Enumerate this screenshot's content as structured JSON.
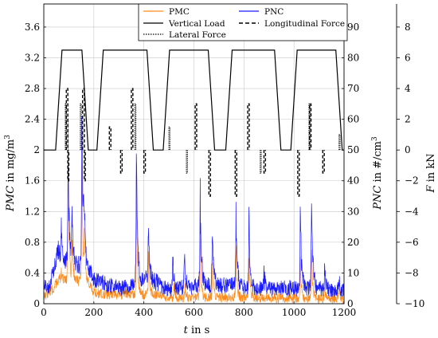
{
  "chart_data": {
    "type": "line",
    "x_range": [
      0,
      1200
    ],
    "x_ticks": [
      "0",
      "200",
      "400",
      "600",
      "800",
      "1000",
      "1200"
    ],
    "xlabel_var": "t",
    "xlabel_rest": " in s",
    "axes": {
      "pmc": {
        "range": [
          0,
          3.9
        ],
        "ticks": [
          "0",
          "0.4",
          "0.8",
          "1.2",
          "1.6",
          "2",
          "2.4",
          "2.8",
          "3.2",
          "3.6"
        ],
        "label_var": "PMC",
        "label_rest": " in mg/m",
        "label_sup": "3"
      },
      "pnc": {
        "range": [
          0,
          97.5
        ],
        "ticks": [
          "0",
          "10",
          "20",
          "30",
          "40",
          "50",
          "60",
          "70",
          "80",
          "90"
        ],
        "label_var": "PNC",
        "label_rest": " in #/cm",
        "label_sup": "3"
      },
      "force": {
        "range": [
          -10,
          9.5
        ],
        "ticks": [
          "−10",
          "−8",
          "−6",
          "−4",
          "−2",
          "0",
          "2",
          "4",
          "6",
          "8"
        ],
        "label_var": "F",
        "label_rest": " in kN"
      }
    },
    "grid": true,
    "legend_position": "top-center",
    "legend": {
      "pmc": "PMC",
      "pnc": "PNC",
      "vertical": "Vertical Load",
      "longitudinal": "Longitudinal Force",
      "lateral": "Lateral Force"
    },
    "colors": {
      "pmc": "#ff8c1a",
      "pnc": "#1a1aff",
      "force": "#000000"
    },
    "vertical_load_kN": {
      "base": 0,
      "level": 6.5,
      "on_intervals": [
        [
          60,
          165
        ],
        [
          225,
          425
        ],
        [
          490,
          670
        ],
        [
          740,
          935
        ],
        [
          1000,
          1180
        ]
      ]
    },
    "longitudinal_force_kN": [
      [
        90,
        96,
        4
      ],
      [
        96,
        100,
        -2
      ],
      [
        155,
        162,
        4
      ],
      [
        162,
        166,
        -2
      ],
      [
        262,
        268,
        1.5
      ],
      [
        307,
        313,
        -1.5
      ],
      [
        350,
        356,
        4
      ],
      [
        400,
        406,
        -1.5
      ],
      [
        605,
        611,
        3
      ],
      [
        660,
        666,
        -3
      ],
      [
        765,
        771,
        -3
      ],
      [
        815,
        821,
        3
      ],
      [
        880,
        886,
        -1.5
      ],
      [
        1015,
        1021,
        -3
      ],
      [
        1062,
        1068,
        3
      ],
      [
        1115,
        1121,
        -1.5
      ]
    ],
    "lateral_force_kN": [
      [
        86,
        90,
        3
      ],
      [
        146,
        150,
        3
      ],
      [
        364,
        368,
        3
      ],
      [
        500,
        504,
        1.5
      ],
      [
        570,
        574,
        -1.5
      ],
      [
        865,
        869,
        -1.5
      ],
      [
        1060,
        1064,
        3
      ],
      [
        1180,
        1184,
        1
      ]
    ],
    "pnc_baseline": [
      [
        0,
        5
      ],
      [
        25,
        6
      ],
      [
        45,
        14
      ],
      [
        60,
        18
      ],
      [
        80,
        13
      ],
      [
        125,
        13
      ],
      [
        175,
        12
      ],
      [
        200,
        8
      ],
      [
        260,
        6
      ],
      [
        320,
        5
      ],
      [
        350,
        6
      ],
      [
        410,
        8
      ],
      [
        455,
        7
      ],
      [
        480,
        5
      ],
      [
        540,
        5
      ],
      [
        640,
        6
      ],
      [
        760,
        6
      ],
      [
        840,
        5
      ],
      [
        900,
        5
      ],
      [
        1000,
        5
      ],
      [
        1100,
        5
      ],
      [
        1200,
        4
      ]
    ],
    "pnc_peaks": [
      [
        70,
        26
      ],
      [
        97,
        50
      ],
      [
        112,
        34
      ],
      [
        152,
        70
      ],
      [
        160,
        40
      ],
      [
        370,
        55
      ],
      [
        418,
        30
      ],
      [
        515,
        17
      ],
      [
        562,
        17
      ],
      [
        625,
        39
      ],
      [
        673,
        29
      ],
      [
        768,
        32
      ],
      [
        820,
        31
      ],
      [
        880,
        10
      ],
      [
        1025,
        33
      ],
      [
        1070,
        41
      ],
      [
        1122,
        12
      ],
      [
        1180,
        8
      ]
    ],
    "pmc_baseline": [
      [
        0,
        0.1
      ],
      [
        40,
        0.2
      ],
      [
        60,
        0.35
      ],
      [
        80,
        0.3
      ],
      [
        120,
        0.3
      ],
      [
        170,
        0.3
      ],
      [
        200,
        0.15
      ],
      [
        260,
        0.12
      ],
      [
        350,
        0.12
      ],
      [
        450,
        0.12
      ],
      [
        500,
        0.08
      ],
      [
        600,
        0.08
      ],
      [
        800,
        0.08
      ],
      [
        1000,
        0.07
      ],
      [
        1200,
        0.06
      ]
    ],
    "pmc_peaks": [
      [
        70,
        0.5
      ],
      [
        97,
        2.4
      ],
      [
        113,
        1.0
      ],
      [
        152,
        2.2
      ],
      [
        162,
        1.0
      ],
      [
        370,
        1.8
      ],
      [
        419,
        0.8
      ],
      [
        520,
        0.3
      ],
      [
        565,
        0.25
      ],
      [
        625,
        1.0
      ],
      [
        675,
        0.7
      ],
      [
        768,
        0.9
      ],
      [
        820,
        0.7
      ],
      [
        1025,
        0.7
      ],
      [
        1070,
        0.9
      ],
      [
        1122,
        0.25
      ],
      [
        1180,
        0.25
      ]
    ]
  }
}
